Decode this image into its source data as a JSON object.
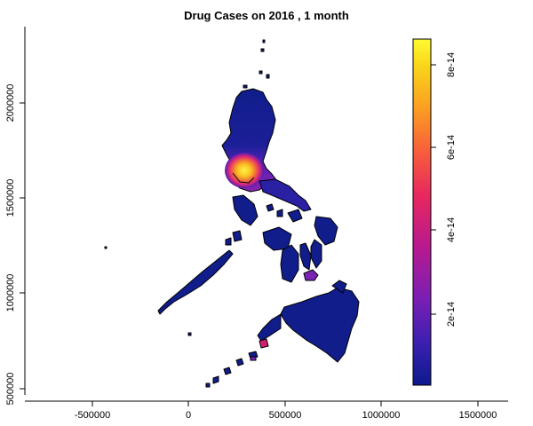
{
  "title": "Drug Cases on  2016 ,  1 month",
  "x_axis": {
    "ticks": [
      "-500000",
      "0",
      "500000",
      "1000000",
      "1500000"
    ]
  },
  "y_axis": {
    "ticks": [
      "500000",
      "1000000",
      "1500000",
      "2000000"
    ]
  },
  "legend": {
    "ticks": [
      "2e-14",
      "4e-14",
      "6e-14",
      "8e-14"
    ],
    "colors": [
      "#0d1a8c",
      "#3a1fb0",
      "#7a1fb3",
      "#b8198f",
      "#e8285e",
      "#f8603a",
      "#fb9e22",
      "#f9d41a",
      "#fffb30"
    ]
  },
  "map_colors": {
    "low": "#101d8a",
    "mid_low": "#2b22a8",
    "mid": "#7b22b5",
    "mid_high": "#e6257a",
    "high": "#f89a2a",
    "peak": "#ffee33"
  }
}
